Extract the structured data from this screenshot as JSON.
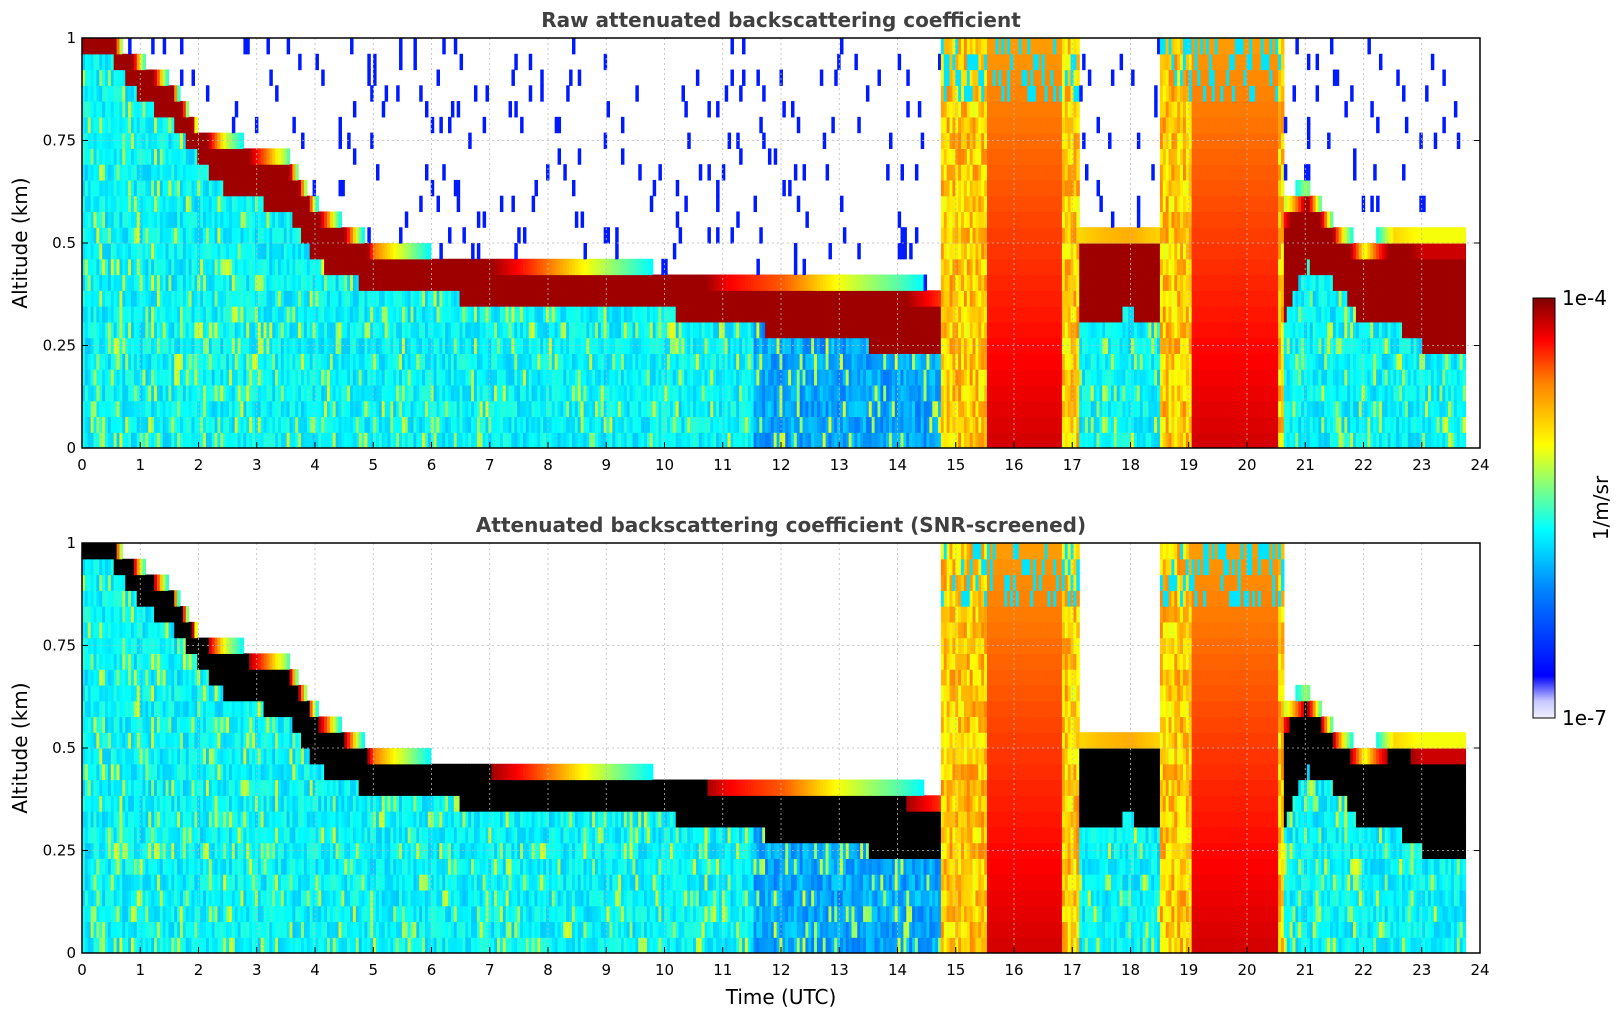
{
  "chart_data": [
    {
      "type": "heatmap",
      "title": "Raw attenuated backscattering coefficient",
      "xlabel": "",
      "ylabel": "Altitude (km)",
      "xlim": [
        0,
        24
      ],
      "ylim": [
        0,
        1
      ],
      "xticks": [
        "0",
        "1",
        "2",
        "3",
        "4",
        "5",
        "6",
        "7",
        "8",
        "9",
        "10",
        "11",
        "12",
        "13",
        "14",
        "15",
        "16",
        "17",
        "18",
        "19",
        "20",
        "21",
        "22",
        "23",
        "24"
      ],
      "yticks": [
        "0",
        "0.25",
        "0.5",
        "0.75",
        "1"
      ],
      "grid": true,
      "layers": {
        "time_h": [
          0,
          0.5,
          1,
          1.5,
          2,
          2.5,
          3,
          3.5,
          4,
          4.5,
          5,
          6,
          7,
          8,
          9,
          10,
          11,
          12,
          13,
          14,
          14.7
        ],
        "cloud_base_km": [
          0.98,
          0.95,
          0.85,
          0.8,
          0.7,
          0.62,
          0.6,
          0.58,
          0.45,
          0.42,
          0.38,
          0.37,
          0.36,
          0.35,
          0.34,
          0.33,
          0.31,
          0.28,
          0.26,
          0.24,
          0.22
        ],
        "cloud_top_km": [
          1.0,
          1.0,
          0.95,
          0.9,
          0.78,
          0.76,
          0.74,
          0.72,
          0.6,
          0.55,
          0.5,
          0.48,
          0.47,
          0.46,
          0.45,
          0.44,
          0.43,
          0.43,
          0.42,
          0.41,
          0.4
        ]
      },
      "precipitation_periods_utc": [
        [
          14.7,
          17.1
        ],
        [
          18.5,
          20.6
        ]
      ]
    },
    {
      "type": "heatmap",
      "title": "Attenuated backscattering coefficient (SNR-screened)",
      "xlabel": "Time (UTC)",
      "ylabel": "Altitude (km)",
      "xlim": [
        0,
        24
      ],
      "ylim": [
        0,
        1
      ],
      "xticks": [
        "0",
        "1",
        "2",
        "3",
        "4",
        "5",
        "6",
        "7",
        "8",
        "9",
        "10",
        "11",
        "12",
        "13",
        "14",
        "15",
        "16",
        "17",
        "18",
        "19",
        "20",
        "21",
        "22",
        "23",
        "24"
      ],
      "yticks": [
        "0",
        "0.25",
        "0.5",
        "0.75",
        "1"
      ],
      "grid": true,
      "screened_regions": "black inside cloud cores"
    }
  ],
  "colorbar": {
    "label": "1/m/sr",
    "max_label": "1e-4",
    "min_label": "1e-7",
    "colormap": "jet"
  }
}
